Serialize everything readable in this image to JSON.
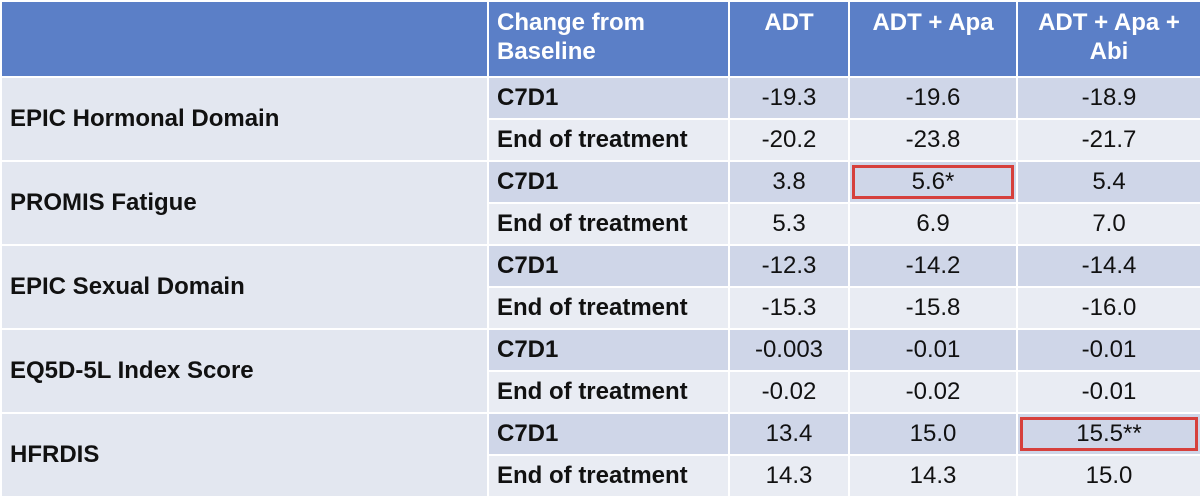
{
  "header": {
    "subheader": "Change from Baseline",
    "columns": [
      "ADT",
      "ADT + Apa",
      "ADT + Apa + Abi"
    ]
  },
  "chart_data": {
    "type": "table",
    "columns": [
      "Change from Baseline",
      "ADT",
      "ADT + Apa",
      "ADT + Apa + Abi"
    ],
    "highlight_color": "#d6403c",
    "header_color": "#5b7fc7",
    "groups": [
      {
        "name": "EPIC Hormonal Domain",
        "rows": [
          {
            "label": "C7D1",
            "values": [
              "-19.3",
              "-19.6",
              "-18.9"
            ]
          },
          {
            "label": "End of treatment",
            "values": [
              "-20.2",
              "-23.8",
              "-21.7"
            ]
          }
        ]
      },
      {
        "name": "PROMIS Fatigue",
        "rows": [
          {
            "label": "C7D1",
            "values": [
              "3.8",
              "5.6*",
              "5.4"
            ],
            "highlight": [
              1
            ]
          },
          {
            "label": "End of treatment",
            "values": [
              "5.3",
              "6.9",
              "7.0"
            ]
          }
        ]
      },
      {
        "name": "EPIC Sexual Domain",
        "rows": [
          {
            "label": "C7D1",
            "values": [
              "-12.3",
              "-14.2",
              "-14.4"
            ]
          },
          {
            "label": "End of treatment",
            "values": [
              "-15.3",
              "-15.8",
              "-16.0"
            ]
          }
        ]
      },
      {
        "name": "EQ5D-5L Index Score",
        "rows": [
          {
            "label": "C7D1",
            "values": [
              "-0.003",
              "-0.01",
              "-0.01"
            ]
          },
          {
            "label": "End of treatment",
            "values": [
              "-0.02",
              "-0.02",
              "-0.01"
            ]
          }
        ]
      },
      {
        "name": "HFRDIS",
        "rows": [
          {
            "label": "C7D1",
            "values": [
              "13.4",
              "15.0",
              "15.5**"
            ],
            "highlight": [
              2
            ]
          },
          {
            "label": "End of treatment",
            "values": [
              "14.3",
              "14.3",
              "15.0"
            ]
          }
        ]
      }
    ]
  }
}
